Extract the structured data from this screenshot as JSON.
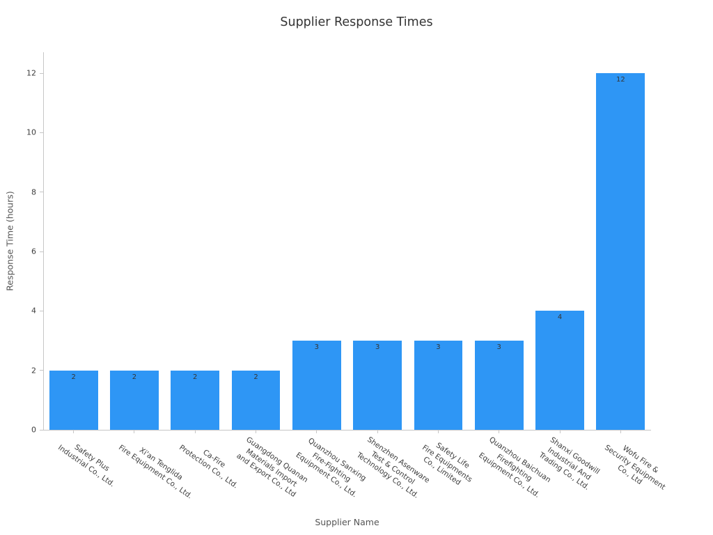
{
  "chart_data": {
    "type": "bar",
    "title": "Supplier Response Times",
    "xlabel": "Supplier Name",
    "ylabel": "Response Time (hours)",
    "categories": [
      "Safety Plus Industrial Co., Ltd.",
      "Xi'an Tenglida Fire Equipment Co., Ltd.",
      "Ca-Fire Protection Co., Ltd.",
      "Guangdong Quanan Materials Import and Export Co., Ltd",
      "Quanzhou Sanxing Fire-Fighting Equipment Co., Ltd.",
      "Shenzhen Asenware Test & Control Technology Co., Ltd.",
      "Safety Life Fire Equipments Co., Limited",
      "Quanzhou Baichuan Firefighting Equipment Co., Ltd.",
      "Shanxi Goodwill Industrial And Trading Co., Ltd.",
      "Wofu Fire & Security Equipment Co., Ltd"
    ],
    "category_label_lines": [
      [
        "Safety Plus",
        "Industrial Co., Ltd."
      ],
      [
        "Xi'an Tenglida",
        "Fire Equipment Co., Ltd."
      ],
      [
        "Ca-Fire",
        "Protection Co., Ltd."
      ],
      [
        "Guangdong Quanan",
        "Materials Import",
        "and Export Co., Ltd"
      ],
      [
        "Quanzhou Sanxing",
        "Fire-Fighting",
        "Equipment Co., Ltd."
      ],
      [
        "Shenzhen Asenware",
        "Test & Control",
        "Technology Co., Ltd."
      ],
      [
        "Safety Life",
        "Fire Equipments",
        "Co., Limited"
      ],
      [
        "Quanzhou Baichuan",
        "Firefighting",
        "Equipment Co., Ltd."
      ],
      [
        "Shanxi Goodwill",
        "Industrial And",
        "Trading Co., Ltd."
      ],
      [
        "Wofu Fire &",
        "Security Equipment",
        "Co., Ltd"
      ]
    ],
    "values": [
      2,
      2,
      2,
      2,
      3,
      3,
      3,
      3,
      4,
      12
    ],
    "value_labels": [
      "2",
      "2",
      "2",
      "2",
      "3",
      "3",
      "3",
      "3",
      "4",
      "12"
    ],
    "yticks": [
      0,
      2,
      4,
      6,
      8,
      10,
      12
    ],
    "ylim": [
      0,
      12.7
    ],
    "grid": false,
    "legend": "none",
    "bar_color": "#2E96F5",
    "value_label_color": "#343434",
    "axis_color": "#c6c6c6",
    "tick_label_color": "#3c3c3c"
  }
}
